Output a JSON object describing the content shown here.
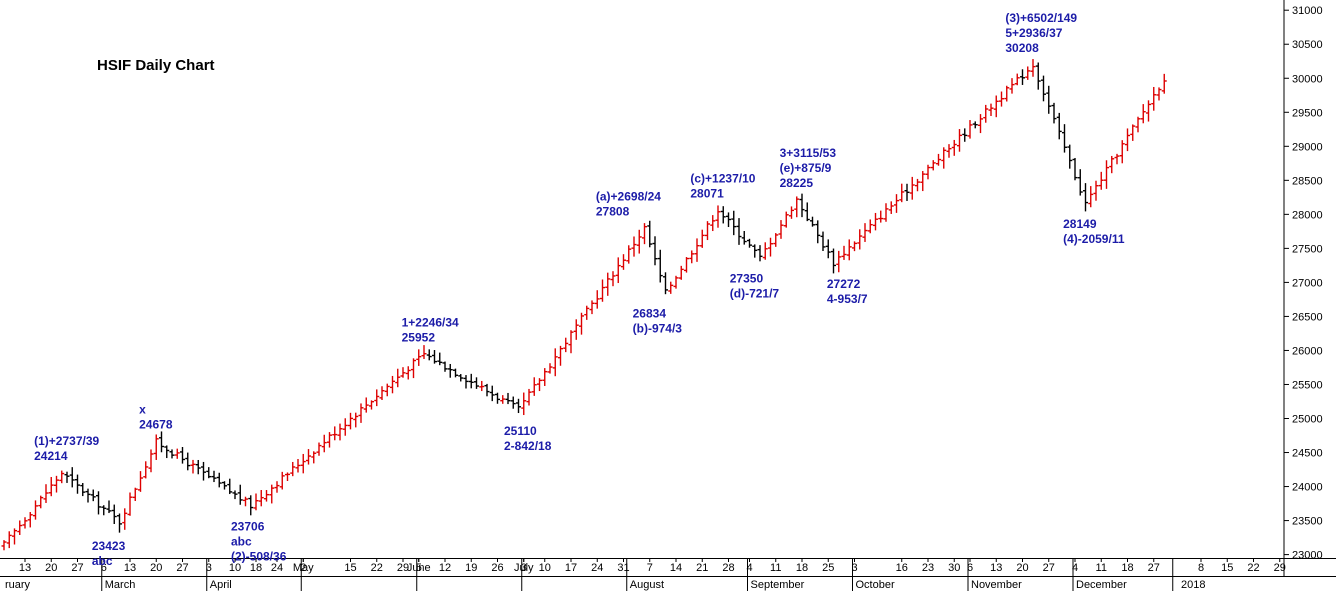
{
  "chart_data": {
    "type": "ohlc",
    "title": "HSIF Daily Chart",
    "xlabel": "",
    "ylabel": "",
    "ylim": [
      22950,
      31150
    ],
    "yticks": [
      23000,
      23500,
      24000,
      24500,
      25000,
      25500,
      26000,
      26500,
      27000,
      27500,
      28000,
      28500,
      29000,
      29500,
      30000,
      30500,
      31000
    ],
    "grid": false,
    "colors": {
      "up": "#dd0000",
      "down": "#000000",
      "annotation": "#1c1ca8"
    },
    "x_ticks": [
      {
        "label": "ruary",
        "day": 0
      },
      {
        "label": "13",
        "day": 4
      },
      {
        "label": "20",
        "day": 9
      },
      {
        "label": "27",
        "day": 14
      },
      {
        "label": "6",
        "day": 19
      },
      {
        "label": "March",
        "day": 19
      },
      {
        "label": "13",
        "day": 24
      },
      {
        "label": "20",
        "day": 29
      },
      {
        "label": "27",
        "day": 34
      },
      {
        "label": "3",
        "day": 39
      },
      {
        "label": "April",
        "day": 39
      },
      {
        "label": "10",
        "day": 44
      },
      {
        "label": "18",
        "day": 48
      },
      {
        "label": "24",
        "day": 52
      },
      {
        "label": "2",
        "day": 57
      },
      {
        "label": "May",
        "day": 57
      },
      {
        "label": "15",
        "day": 66
      },
      {
        "label": "22",
        "day": 71
      },
      {
        "label": "29",
        "day": 76
      },
      {
        "label": "5",
        "day": 79
      },
      {
        "label": "June",
        "day": 79
      },
      {
        "label": "12",
        "day": 84
      },
      {
        "label": "19",
        "day": 89
      },
      {
        "label": "26",
        "day": 94
      },
      {
        "label": "3",
        "day": 99
      },
      {
        "label": "July",
        "day": 99
      },
      {
        "label": "10",
        "day": 103
      },
      {
        "label": "17",
        "day": 108
      },
      {
        "label": "24",
        "day": 113
      },
      {
        "label": "31",
        "day": 118
      },
      {
        "label": "August",
        "day": 119
      },
      {
        "label": "7",
        "day": 123
      },
      {
        "label": "14",
        "day": 128
      },
      {
        "label": "21",
        "day": 133
      },
      {
        "label": "28",
        "day": 138
      },
      {
        "label": "4",
        "day": 142
      },
      {
        "label": "September",
        "day": 142
      },
      {
        "label": "11",
        "day": 147
      },
      {
        "label": "18",
        "day": 152
      },
      {
        "label": "25",
        "day": 157
      },
      {
        "label": "3",
        "day": 162
      },
      {
        "label": "October",
        "day": 162
      },
      {
        "label": "16",
        "day": 171
      },
      {
        "label": "23",
        "day": 176
      },
      {
        "label": "30",
        "day": 181
      },
      {
        "label": "6",
        "day": 184
      },
      {
        "label": "November",
        "day": 184
      },
      {
        "label": "13",
        "day": 189
      },
      {
        "label": "20",
        "day": 194
      },
      {
        "label": "27",
        "day": 199
      },
      {
        "label": "4",
        "day": 204
      },
      {
        "label": "December",
        "day": 204
      },
      {
        "label": "11",
        "day": 209
      },
      {
        "label": "18",
        "day": 214
      },
      {
        "label": "27",
        "day": 219
      },
      {
        "label": "2018",
        "day": 224
      },
      {
        "label": "8",
        "day": 228
      },
      {
        "label": "15",
        "day": 233
      },
      {
        "label": "22",
        "day": 238
      },
      {
        "label": "29",
        "day": 243
      }
    ],
    "month_boundaries": [
      19,
      39,
      57,
      79,
      99,
      119,
      142,
      162,
      184,
      204,
      223
    ],
    "pivots": [
      {
        "day": 0,
        "price": 23150
      },
      {
        "day": 11,
        "price": 24200
      },
      {
        "day": 22,
        "price": 23480
      },
      {
        "day": 29,
        "price": 24660
      },
      {
        "day": 47,
        "price": 23720
      },
      {
        "day": 80,
        "price": 25950
      },
      {
        "day": 98,
        "price": 25130
      },
      {
        "day": 122,
        "price": 27800
      },
      {
        "day": 126,
        "price": 26850
      },
      {
        "day": 136,
        "price": 28070
      },
      {
        "day": 144,
        "price": 27360
      },
      {
        "day": 151,
        "price": 28220
      },
      {
        "day": 158,
        "price": 27290
      },
      {
        "day": 196,
        "price": 30200
      },
      {
        "day": 206,
        "price": 28160
      },
      {
        "day": 221,
        "price": 30000
      }
    ],
    "annotations": [
      {
        "lines": [
          "(1)+2737/39",
          "24214"
        ],
        "day": 6.5,
        "price": 24214,
        "pos": "above"
      },
      {
        "lines": [
          "23423",
          "abc"
        ],
        "day": 17.5,
        "price": 23423,
        "pos": "below"
      },
      {
        "lines": [
          "x",
          "24678"
        ],
        "day": 26.5,
        "price": 24678,
        "pos": "above"
      },
      {
        "lines": [
          "23706",
          "abc",
          "(2)-508/36"
        ],
        "day": 44,
        "price": 23706,
        "pos": "below"
      },
      {
        "lines": [
          "1+2246/34",
          "25952"
        ],
        "day": 76.5,
        "price": 25952,
        "pos": "above"
      },
      {
        "lines": [
          "25110",
          "2-842/18"
        ],
        "day": 96,
        "price": 25110,
        "pos": "below"
      },
      {
        "lines": [
          "(a)+2698/24",
          "27808"
        ],
        "day": 113.5,
        "price": 27808,
        "pos": "above"
      },
      {
        "lines": [
          "26834",
          "(b)-974/3"
        ],
        "day": 120.5,
        "price": 26834,
        "pos": "below"
      },
      {
        "lines": [
          "(c)+1237/10",
          "28071"
        ],
        "day": 131.5,
        "price": 28071,
        "pos": "above"
      },
      {
        "lines": [
          "27350",
          "(d)-721/7"
        ],
        "day": 139,
        "price": 27350,
        "pos": "below"
      },
      {
        "lines": [
          "3+3115/53",
          "(e)+875/9",
          "28225"
        ],
        "day": 148.5,
        "price": 28225,
        "pos": "above"
      },
      {
        "lines": [
          "27272",
          "4-953/7"
        ],
        "day": 157.5,
        "price": 27272,
        "pos": "below"
      },
      {
        "lines": [
          "(3)+6502/149",
          "5+2936/37",
          "30208"
        ],
        "day": 191.5,
        "price": 30208,
        "pos": "above"
      },
      {
        "lines": [
          "28149",
          "(4)-2059/11"
        ],
        "day": 202.5,
        "price": 28149,
        "pos": "below"
      }
    ]
  }
}
